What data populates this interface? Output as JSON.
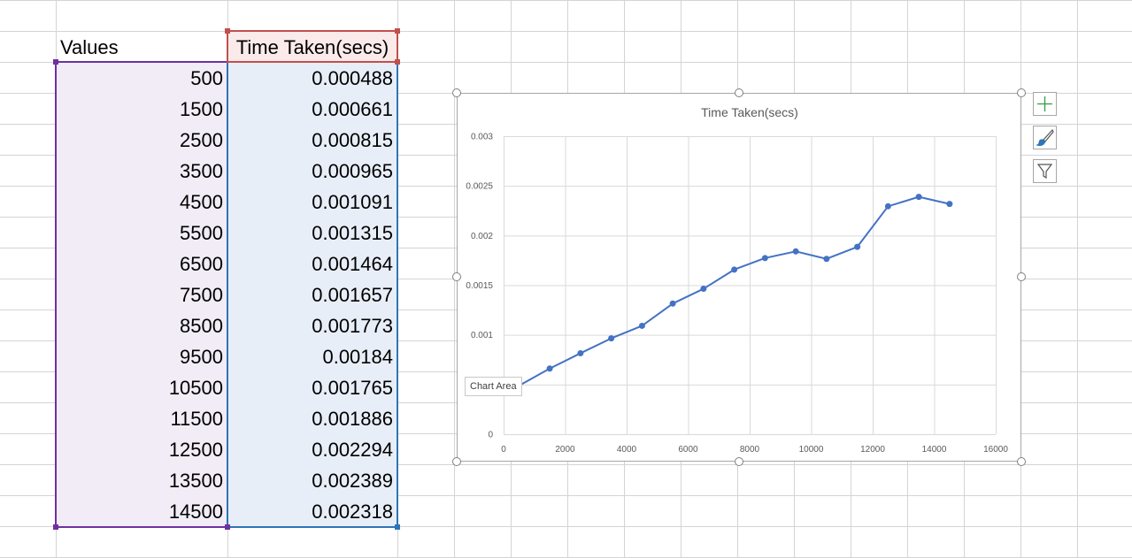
{
  "sheet": {
    "header_values": "Values",
    "header_time": "Time Taken(secs)",
    "rows": [
      {
        "value": "500",
        "time": "0.000488"
      },
      {
        "value": "1500",
        "time": "0.000661"
      },
      {
        "value": "2500",
        "time": "0.000815"
      },
      {
        "value": "3500",
        "time": "0.000965"
      },
      {
        "value": "4500",
        "time": "0.001091"
      },
      {
        "value": "5500",
        "time": "0.001315"
      },
      {
        "value": "6500",
        "time": "0.001464"
      },
      {
        "value": "7500",
        "time": "0.001657"
      },
      {
        "value": "8500",
        "time": "0.001773"
      },
      {
        "value": "9500",
        "time": "0.00184"
      },
      {
        "value": "10500",
        "time": "0.001765"
      },
      {
        "value": "11500",
        "time": "0.001886"
      },
      {
        "value": "12500",
        "time": "0.002294"
      },
      {
        "value": "13500",
        "time": "0.002389"
      },
      {
        "value": "14500",
        "time": "0.002318"
      }
    ]
  },
  "chart_data": {
    "type": "line",
    "title": "Time Taken(secs)",
    "x": [
      500,
      1500,
      2500,
      3500,
      4500,
      5500,
      6500,
      7500,
      8500,
      9500,
      10500,
      11500,
      12500,
      13500,
      14500
    ],
    "series": [
      {
        "values": [
          0.000488,
          0.000661,
          0.000815,
          0.000965,
          0.001091,
          0.001315,
          0.001464,
          0.001657,
          0.001773,
          0.00184,
          0.001765,
          0.001886,
          0.002294,
          0.002389,
          0.002318
        ],
        "color": "#4472c4"
      }
    ],
    "xlim": [
      0,
      16000
    ],
    "ylim": [
      0,
      0.003
    ],
    "x_ticks": [
      0,
      2000,
      4000,
      6000,
      8000,
      10000,
      12000,
      14000,
      16000
    ],
    "y_ticks": [
      0,
      0.0005,
      0.001,
      0.0015,
      0.002,
      0.0025,
      0.003
    ],
    "x_tick_labels": [
      "0",
      "2000",
      "4000",
      "6000",
      "8000",
      "10000",
      "12000",
      "14000",
      "16000"
    ],
    "y_tick_labels": [
      "0",
      "",
      "0.001",
      "0.0015",
      "0.002",
      "0.0025",
      "0.003"
    ],
    "grid": true,
    "legend": "none"
  },
  "tooltip": "Chart Area",
  "chart_buttons": {
    "elements": "chart-elements-plus-icon",
    "styles": "chart-styles-brush-icon",
    "filters": "chart-filters-funnel-icon"
  },
  "colors": {
    "values_border": "#7030a0",
    "time_border": "#2e75b6",
    "header_border": "#c0504d",
    "values_fill": "#f1ecf5",
    "time_fill": "#e8eef8",
    "header_fill": "#fbeaea",
    "gridline": "#d4d4d4"
  }
}
